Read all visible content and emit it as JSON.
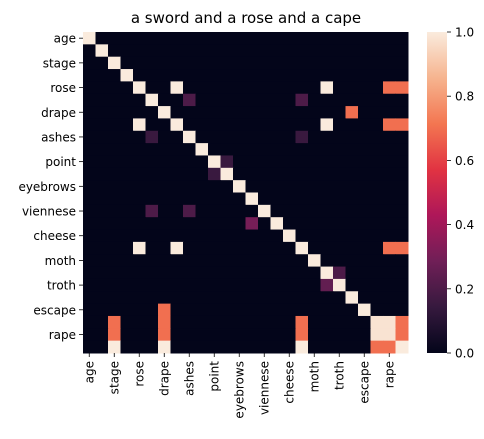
{
  "chart_data": {
    "type": "heatmap",
    "title": "a sword and a rose and a cape",
    "xlabel": "",
    "ylabel": "",
    "labels": [
      "age",
      "",
      "stage",
      "",
      "rose",
      "",
      "drape",
      "",
      "ashes",
      "",
      "point",
      "",
      "eyebrows",
      "",
      "viennese",
      "",
      "cheese",
      "",
      "moth",
      "",
      "troth",
      "",
      "escape",
      "",
      "rape",
      ""
    ],
    "tick_labels": [
      "age",
      "stage",
      "rose",
      "drape",
      "ashes",
      "point",
      "eyebrows",
      "viennese",
      "cheese",
      "moth",
      "troth",
      "escape",
      "rape"
    ],
    "colorbar": {
      "min": 0.0,
      "max": 1.0,
      "ticks": [
        "0.0",
        "0.2",
        "0.4",
        "0.6",
        "0.8",
        "1.0"
      ]
    },
    "colormap": [
      "#03051a",
      "#36193e",
      "#701f57",
      "#ae1759",
      "#e13342",
      "#f37651",
      "#f6b48f",
      "#faebdd"
    ],
    "diagonal_value": 1.0,
    "cells": [
      [
        4,
        7,
        1.0
      ],
      [
        4,
        19,
        1.0
      ],
      [
        4,
        24,
        0.7
      ],
      [
        4,
        25,
        0.7
      ],
      [
        4,
        26,
        1.0
      ],
      [
        5,
        8,
        0.2
      ],
      [
        5,
        17,
        0.2
      ],
      [
        6,
        21,
        0.7
      ],
      [
        7,
        4,
        1.0
      ],
      [
        7,
        19,
        1.0
      ],
      [
        7,
        24,
        0.7
      ],
      [
        7,
        25,
        0.7
      ],
      [
        7,
        26,
        1.0
      ],
      [
        8,
        5,
        0.15
      ],
      [
        8,
        17,
        0.15
      ],
      [
        10,
        11,
        0.15
      ],
      [
        11,
        10,
        0.15
      ],
      [
        14,
        5,
        0.2
      ],
      [
        14,
        8,
        0.2
      ],
      [
        15,
        13,
        0.3
      ],
      [
        17,
        4,
        1.0
      ],
      [
        17,
        7,
        1.0
      ],
      [
        17,
        24,
        0.7
      ],
      [
        17,
        25,
        0.7
      ],
      [
        17,
        26,
        1.0
      ],
      [
        19,
        20,
        0.2
      ],
      [
        20,
        19,
        0.25
      ],
      [
        22,
        6,
        0.7
      ],
      [
        23,
        2,
        0.7
      ],
      [
        23,
        6,
        0.7
      ],
      [
        23,
        17,
        0.7
      ],
      [
        23,
        23,
        0.98
      ],
      [
        23,
        24,
        0.98
      ],
      [
        23,
        25,
        0.7
      ],
      [
        24,
        2,
        0.7
      ],
      [
        24,
        6,
        0.7
      ],
      [
        24,
        17,
        0.7
      ],
      [
        24,
        23,
        0.98
      ],
      [
        24,
        24,
        0.98
      ],
      [
        24,
        25,
        0.7
      ],
      [
        25,
        2,
        1.0
      ],
      [
        25,
        6,
        1.0
      ],
      [
        25,
        17,
        1.0
      ],
      [
        25,
        23,
        0.7
      ],
      [
        25,
        24,
        0.7
      ],
      [
        25,
        25,
        1.0
      ]
    ]
  }
}
